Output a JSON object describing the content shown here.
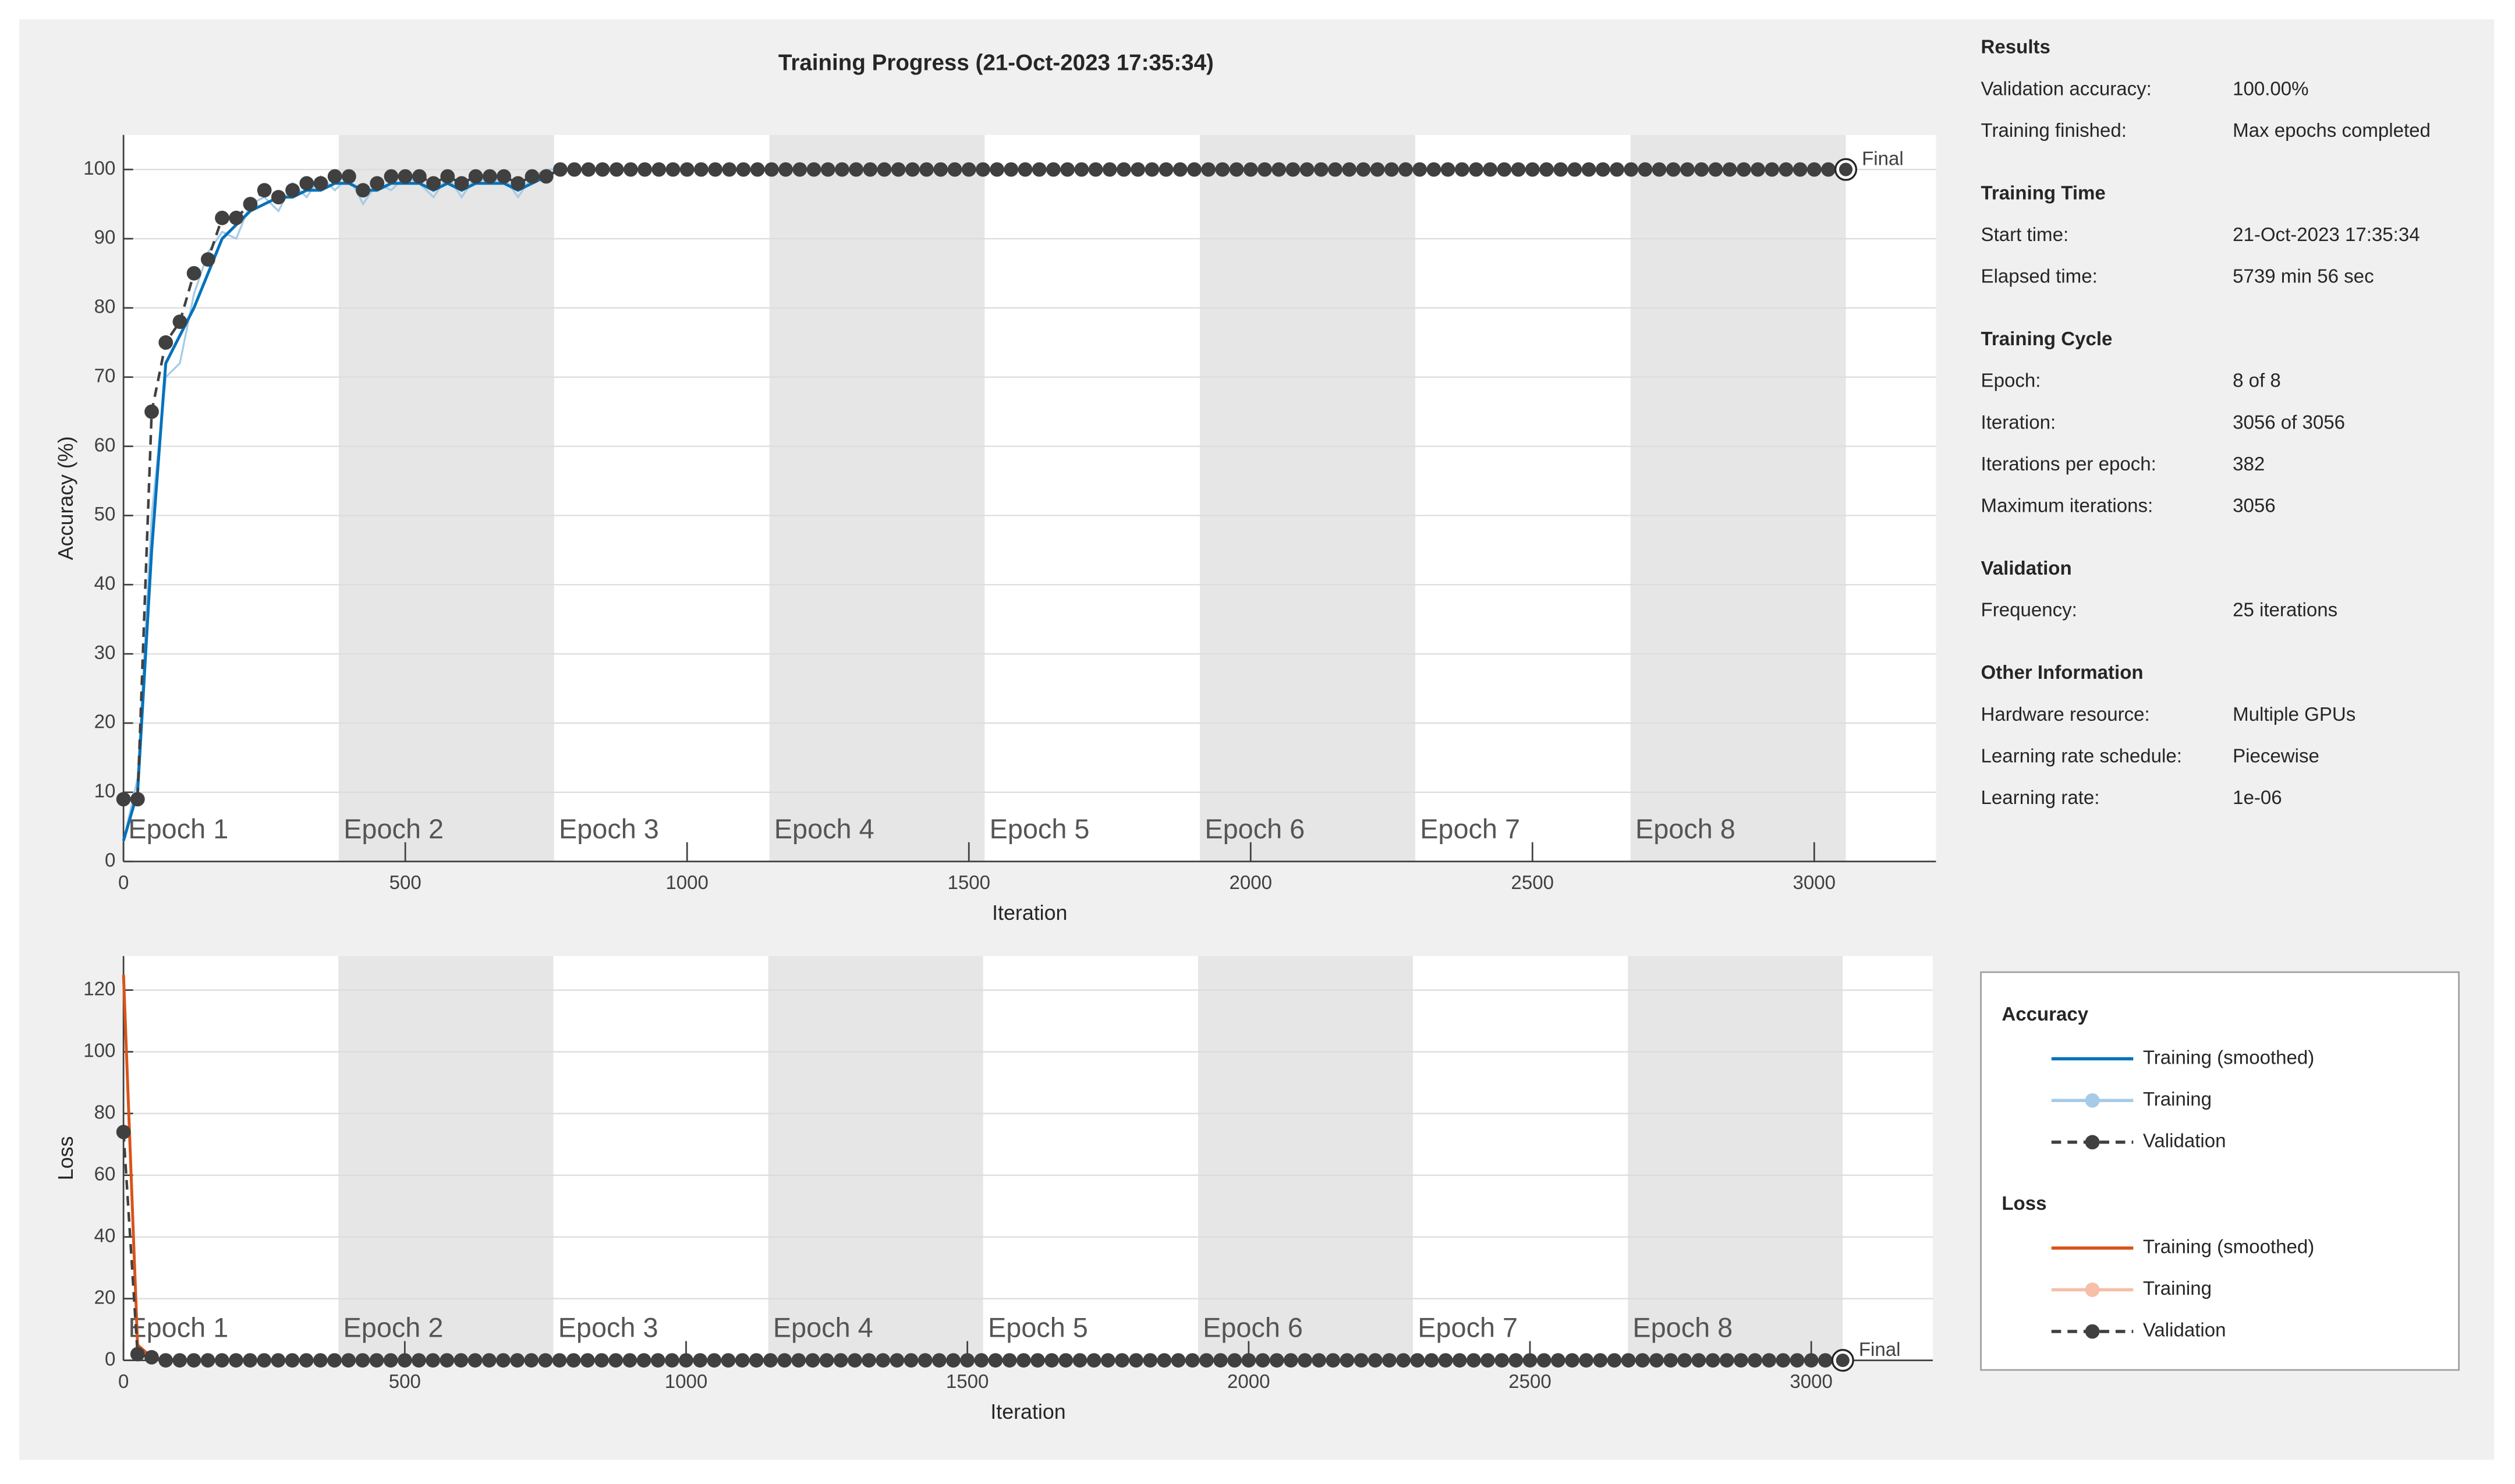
{
  "title": "Training Progress (21-Oct-2023 17:35:34)",
  "chart_data": [
    {
      "type": "line",
      "y_label": "Accuracy (%)",
      "x_label": "Iteration",
      "legend_title": "Accuracy",
      "xlim": [
        0,
        3216
      ],
      "ylim": [
        0,
        105
      ],
      "xticks": [
        0,
        500,
        1000,
        1500,
        2000,
        2500,
        3000
      ],
      "yticks": [
        0,
        10,
        20,
        30,
        40,
        50,
        60,
        70,
        80,
        90,
        100
      ],
      "grid": true,
      "epoch_labels": [
        "Epoch 1",
        "Epoch 2",
        "Epoch 3",
        "Epoch 4",
        "Epoch 5",
        "Epoch 6",
        "Epoch 7",
        "Epoch 8"
      ],
      "epoch_bounds": [
        0,
        382,
        764,
        1146,
        1528,
        1910,
        2292,
        2674,
        3056
      ],
      "x": [
        0,
        25,
        50,
        75,
        100,
        125,
        150,
        175,
        200,
        225,
        250,
        275,
        300,
        325,
        350,
        375,
        400,
        425,
        450,
        475,
        500,
        525,
        550,
        575,
        600,
        625,
        650,
        675,
        700,
        725,
        750,
        775,
        800,
        825,
        850,
        875,
        900,
        925,
        950,
        975,
        1000,
        1025,
        1050,
        1075,
        1100,
        1125,
        1150,
        1175,
        1200,
        1225,
        1250,
        1275,
        1300,
        1325,
        1350,
        1375,
        1400,
        1425,
        1450,
        1475,
        1500,
        1525,
        1550,
        1575,
        1600,
        1625,
        1650,
        1675,
        1700,
        1725,
        1750,
        1775,
        1800,
        1825,
        1850,
        1875,
        1900,
        1925,
        1950,
        1975,
        2000,
        2025,
        2050,
        2075,
        2100,
        2125,
        2150,
        2175,
        2200,
        2225,
        2250,
        2275,
        2300,
        2325,
        2350,
        2375,
        2400,
        2425,
        2450,
        2475,
        2500,
        2525,
        2550,
        2575,
        2600,
        2625,
        2650,
        2675,
        2700,
        2725,
        2750,
        2775,
        2800,
        2825,
        2850,
        2875,
        2900,
        2925,
        2950,
        2975,
        3000,
        3025,
        3050
      ],
      "series": [
        {
          "name": "Training (smoothed)",
          "color": "#0072bd",
          "line_style": "solid",
          "markers": false,
          "values": [
            3,
            10,
            45,
            72,
            76,
            80,
            85,
            90,
            92,
            94,
            95,
            96,
            96,
            97,
            97,
            98,
            98,
            97,
            97,
            98,
            98,
            98,
            97,
            98,
            97,
            98,
            98,
            98,
            97,
            98,
            99,
            100,
            100,
            100,
            100,
            100,
            100,
            100,
            100,
            100,
            100,
            100,
            100,
            100,
            100,
            100,
            100,
            100,
            100,
            100,
            100,
            100,
            100,
            100,
            100,
            100,
            100,
            100,
            100,
            100,
            100,
            100,
            100,
            100,
            100,
            100,
            100,
            100,
            100,
            100,
            100,
            100,
            100,
            100,
            100,
            100,
            100,
            100,
            100,
            100,
            100,
            100,
            100,
            100,
            100,
            100,
            100,
            100,
            100,
            100,
            100,
            100,
            100,
            100,
            100,
            100,
            100,
            100,
            100,
            100,
            100,
            100,
            100,
            100,
            100,
            100,
            100,
            100,
            100,
            100,
            100,
            100,
            100,
            100,
            100,
            100,
            100,
            100,
            100,
            100,
            100,
            100,
            100
          ]
        },
        {
          "name": "Training",
          "color": "#a6cbe6",
          "line_style": "solid",
          "markers": false,
          "values": [
            3,
            12,
            50,
            70,
            72,
            82,
            88,
            91,
            90,
            95,
            96,
            94,
            98,
            96,
            99,
            97,
            99,
            95,
            98,
            97,
            99,
            98,
            96,
            99,
            96,
            99,
            98,
            99,
            96,
            99,
            100,
            100,
            100,
            100,
            100,
            100,
            100,
            100,
            100,
            100,
            100,
            100,
            100,
            100,
            100,
            100,
            100,
            100,
            100,
            100,
            100,
            100,
            100,
            100,
            100,
            100,
            100,
            100,
            100,
            100,
            100,
            100,
            100,
            100,
            100,
            100,
            100,
            100,
            100,
            100,
            100,
            100,
            100,
            100,
            100,
            100,
            100,
            100,
            100,
            100,
            100,
            100,
            100,
            100,
            100,
            100,
            100,
            100,
            100,
            100,
            100,
            100,
            100,
            100,
            100,
            100,
            100,
            100,
            100,
            100,
            100,
            100,
            100,
            100,
            100,
            100,
            100,
            100,
            100,
            100,
            100,
            100,
            100,
            100,
            100,
            100,
            100,
            100,
            100,
            100,
            100,
            100,
            100
          ]
        },
        {
          "name": "Validation",
          "color": "#404040",
          "line_style": "dashed",
          "markers": true,
          "values": [
            9,
            9,
            65,
            75,
            78,
            85,
            87,
            93,
            93,
            95,
            97,
            96,
            97,
            98,
            98,
            99,
            99,
            97,
            98,
            99,
            99,
            99,
            98,
            99,
            98,
            99,
            99,
            99,
            98,
            99,
            99,
            100,
            100,
            100,
            100,
            100,
            100,
            100,
            100,
            100,
            100,
            100,
            100,
            100,
            100,
            100,
            100,
            100,
            100,
            100,
            100,
            100,
            100,
            100,
            100,
            100,
            100,
            100,
            100,
            100,
            100,
            100,
            100,
            100,
            100,
            100,
            100,
            100,
            100,
            100,
            100,
            100,
            100,
            100,
            100,
            100,
            100,
            100,
            100,
            100,
            100,
            100,
            100,
            100,
            100,
            100,
            100,
            100,
            100,
            100,
            100,
            100,
            100,
            100,
            100,
            100,
            100,
            100,
            100,
            100,
            100,
            100,
            100,
            100,
            100,
            100,
            100,
            100,
            100,
            100,
            100,
            100,
            100,
            100,
            100,
            100,
            100,
            100,
            100,
            100,
            100,
            100,
            100
          ]
        }
      ],
      "final": {
        "x": 3056,
        "value": 100,
        "label": "Final"
      }
    },
    {
      "type": "line",
      "y_label": "Loss",
      "x_label": "Iteration",
      "legend_title": "Loss",
      "xlim": [
        0,
        3216
      ],
      "ylim": [
        0,
        131
      ],
      "xticks": [
        0,
        500,
        1000,
        1500,
        2000,
        2500,
        3000
      ],
      "yticks": [
        0,
        20,
        40,
        60,
        80,
        100,
        120
      ],
      "grid": true,
      "epoch_labels": [
        "Epoch 1",
        "Epoch 2",
        "Epoch 3",
        "Epoch 4",
        "Epoch 5",
        "Epoch 6",
        "Epoch 7",
        "Epoch 8"
      ],
      "epoch_bounds": [
        0,
        382,
        764,
        1146,
        1528,
        1910,
        2292,
        2674,
        3056
      ],
      "x": [
        0,
        25,
        50,
        75,
        100,
        125,
        150,
        175,
        200,
        225,
        250,
        275,
        300,
        325,
        350,
        375,
        400,
        425,
        450,
        475,
        500,
        525,
        550,
        575,
        600,
        625,
        650,
        675,
        700,
        725,
        750,
        775,
        800,
        825,
        850,
        875,
        900,
        925,
        950,
        975,
        1000,
        1025,
        1050,
        1075,
        1100,
        1125,
        1150,
        1175,
        1200,
        1225,
        1250,
        1275,
        1300,
        1325,
        1350,
        1375,
        1400,
        1425,
        1450,
        1475,
        1500,
        1525,
        1550,
        1575,
        1600,
        1625,
        1650,
        1675,
        1700,
        1725,
        1750,
        1775,
        1800,
        1825,
        1850,
        1875,
        1900,
        1925,
        1950,
        1975,
        2000,
        2025,
        2050,
        2075,
        2100,
        2125,
        2150,
        2175,
        2200,
        2225,
        2250,
        2275,
        2300,
        2325,
        2350,
        2375,
        2400,
        2425,
        2450,
        2475,
        2500,
        2525,
        2550,
        2575,
        2600,
        2625,
        2650,
        2675,
        2700,
        2725,
        2750,
        2775,
        2800,
        2825,
        2850,
        2875,
        2900,
        2925,
        2950,
        2975,
        3000,
        3025,
        3050
      ],
      "series": [
        {
          "name": "Training (smoothed)",
          "color": "#d95319",
          "line_style": "solid",
          "markers": false,
          "values": [
            125,
            5,
            1,
            0,
            0,
            0,
            0,
            0,
            0,
            0,
            0,
            0,
            0,
            0,
            0,
            0,
            0,
            0,
            0,
            0,
            0,
            0,
            0,
            0,
            0,
            0,
            0,
            0,
            0,
            0,
            0,
            0,
            0,
            0,
            0,
            0,
            0,
            0,
            0,
            0,
            0,
            0,
            0,
            0,
            0,
            0,
            0,
            0,
            0,
            0,
            0,
            0,
            0,
            0,
            0,
            0,
            0,
            0,
            0,
            0,
            0,
            0,
            0,
            0,
            0,
            0,
            0,
            0,
            0,
            0,
            0,
            0,
            0,
            0,
            0,
            0,
            0,
            0,
            0,
            0,
            0,
            0,
            0,
            0,
            0,
            0,
            0,
            0,
            0,
            0,
            0,
            0,
            0,
            0,
            0,
            0,
            0,
            0,
            0,
            0,
            0,
            0,
            0,
            0,
            0,
            0,
            0,
            0,
            0,
            0,
            0,
            0,
            0,
            0,
            0,
            0,
            0,
            0,
            0,
            0,
            0,
            0,
            0
          ]
        },
        {
          "name": "Training",
          "color": "#f5bfa8",
          "line_style": "solid",
          "markers": false,
          "values": [
            125,
            3,
            1,
            0,
            0,
            0,
            0,
            0,
            0,
            0,
            0,
            0,
            0,
            0,
            0,
            0,
            0,
            0,
            0,
            0,
            0,
            0,
            0,
            0,
            0,
            0,
            0,
            0,
            0,
            0,
            0,
            0,
            0,
            0,
            0,
            0,
            0,
            0,
            0,
            0,
            0,
            0,
            0,
            0,
            0,
            0,
            0,
            0,
            0,
            0,
            0,
            0,
            0,
            0,
            0,
            0,
            0,
            0,
            0,
            0,
            0,
            0,
            0,
            0,
            0,
            0,
            0,
            0,
            0,
            0,
            0,
            0,
            0,
            0,
            0,
            0,
            0,
            0,
            0,
            0,
            0,
            0,
            0,
            0,
            0,
            0,
            0,
            0,
            0,
            0,
            0,
            0,
            0,
            0,
            0,
            0,
            0,
            0,
            0,
            0,
            0,
            0,
            0,
            0,
            0,
            0,
            0,
            0,
            0,
            0,
            0,
            0,
            0,
            0,
            0,
            0,
            0,
            0,
            0,
            0,
            0,
            0,
            0
          ]
        },
        {
          "name": "Validation",
          "color": "#404040",
          "line_style": "dashed",
          "markers": true,
          "values": [
            74,
            2,
            1,
            0,
            0,
            0,
            0,
            0,
            0,
            0,
            0,
            0,
            0,
            0,
            0,
            0,
            0,
            0,
            0,
            0,
            0,
            0,
            0,
            0,
            0,
            0,
            0,
            0,
            0,
            0,
            0,
            0,
            0,
            0,
            0,
            0,
            0,
            0,
            0,
            0,
            0,
            0,
            0,
            0,
            0,
            0,
            0,
            0,
            0,
            0,
            0,
            0,
            0,
            0,
            0,
            0,
            0,
            0,
            0,
            0,
            0,
            0,
            0,
            0,
            0,
            0,
            0,
            0,
            0,
            0,
            0,
            0,
            0,
            0,
            0,
            0,
            0,
            0,
            0,
            0,
            0,
            0,
            0,
            0,
            0,
            0,
            0,
            0,
            0,
            0,
            0,
            0,
            0,
            0,
            0,
            0,
            0,
            0,
            0,
            0,
            0,
            0,
            0,
            0,
            0,
            0,
            0,
            0,
            0,
            0,
            0,
            0,
            0,
            0,
            0,
            0,
            0,
            0,
            0,
            0,
            0,
            0,
            0
          ]
        }
      ],
      "final": {
        "x": 3056,
        "value": 0,
        "label": "Final"
      }
    }
  ],
  "info_panel": {
    "sections": [
      {
        "title": "Results",
        "rows": [
          [
            "Validation accuracy:",
            "100.00%"
          ],
          [
            "Training finished:",
            "Max epochs completed"
          ]
        ]
      },
      {
        "title": "Training Time",
        "rows": [
          [
            "Start time:",
            "21-Oct-2023 17:35:34"
          ],
          [
            "Elapsed time:",
            "5739 min 56 sec"
          ]
        ]
      },
      {
        "title": "Training Cycle",
        "rows": [
          [
            "Epoch:",
            "8 of 8"
          ],
          [
            "Iteration:",
            "3056 of 3056"
          ],
          [
            "Iterations per epoch:",
            "382"
          ],
          [
            "Maximum iterations:",
            "3056"
          ]
        ]
      },
      {
        "title": "Validation",
        "rows": [
          [
            "Frequency:",
            "25 iterations"
          ]
        ]
      },
      {
        "title": "Other Information",
        "rows": [
          [
            "Hardware resource:",
            "Multiple GPUs"
          ],
          [
            "Learning rate schedule:",
            "Piecewise"
          ],
          [
            "Learning rate:",
            "1e-06"
          ]
        ]
      }
    ]
  }
}
